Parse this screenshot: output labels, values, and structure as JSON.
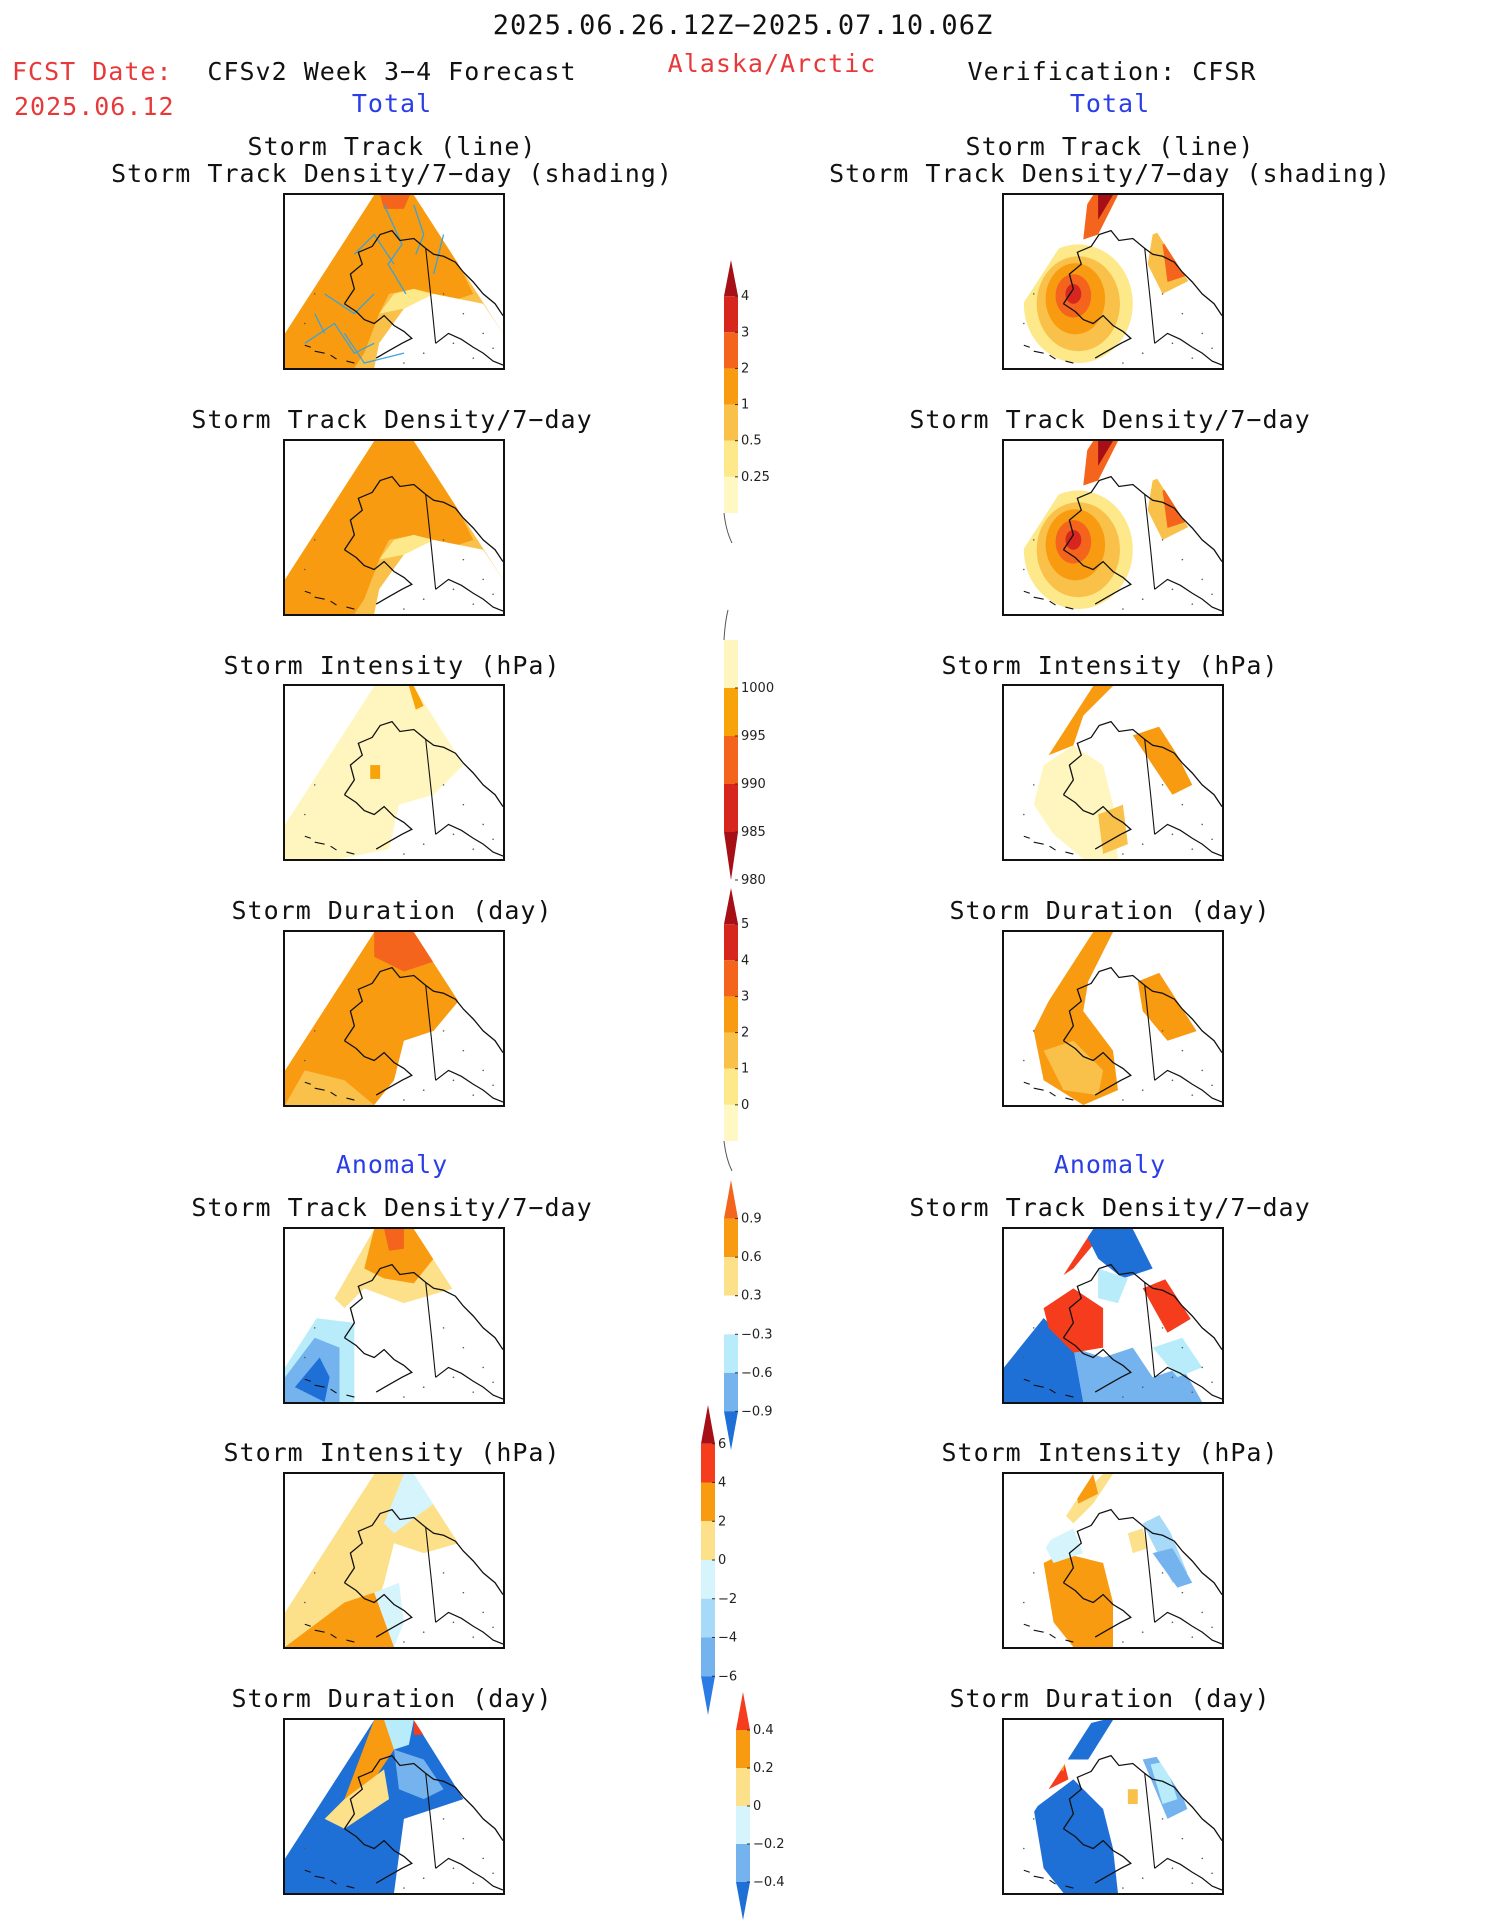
{
  "header": {
    "period": "2025.06.26.12Z−2025.07.10.06Z",
    "fcst_label": "FCST Date:",
    "fcst_date": "2025.06.12",
    "model_title": "CFSv2 Week 3−4 Forecast",
    "region": "Alaska/Arctic",
    "verification": "Verification: CFSR",
    "left_total": "Total",
    "right_total": "Total",
    "left_anomaly": "Anomaly",
    "right_anomaly": "Anomaly"
  },
  "panels": {
    "track_line": "Storm Track (line)",
    "track_shading": "Storm Track Density/7−day (shading)",
    "density": "Storm Track Density/7−day",
    "intensity": "Storm Intensity (hPa)",
    "duration": "Storm Duration (day)"
  },
  "colorbars": {
    "density_total": {
      "labels": [
        "4",
        "3",
        "2",
        "1",
        "0.5",
        "0.25"
      ],
      "colors": [
        "#a50f15",
        "#d7261e",
        "#f4641d",
        "#f89b11",
        "#f9c04a",
        "#fde98a",
        "#fff8c4"
      ]
    },
    "intensity_total": {
      "labels": [
        "1000",
        "995",
        "990",
        "985",
        "980"
      ],
      "colors": [
        "#fff6bf",
        "#f9a30a",
        "#f4641d",
        "#d7261e",
        "#a50f15"
      ]
    },
    "duration_total": {
      "labels": [
        "5",
        "4",
        "3",
        "2",
        "1",
        "0"
      ],
      "colors": [
        "#a50f15",
        "#d7261e",
        "#f4641d",
        "#f89b11",
        "#f9c04a",
        "#fde98a",
        "#fff8c4"
      ]
    },
    "density_anom": {
      "labels": [
        "0.9",
        "0.6",
        "0.3",
        "−0.3",
        "−0.6",
        "−0.9"
      ],
      "colors": [
        "#f4641d",
        "#f89b11",
        "#fde08a",
        "#ffffff",
        "#b9ecfb",
        "#74b3ee",
        "#1e6fd6"
      ]
    },
    "intensity_anom": {
      "labels": [
        "6",
        "4",
        "2",
        "0",
        "−2",
        "−4",
        "−6"
      ],
      "colors": [
        "#a50f15",
        "#f53d1d",
        "#f89b11",
        "#fde08a",
        "#d6f4fb",
        "#a7d9f8",
        "#74b3ee",
        "#2b7be6"
      ]
    },
    "duration_anom": {
      "labels": [
        "0.4",
        "0.2",
        "0",
        "−0.2",
        "−0.4"
      ],
      "colors": [
        "#f53d1d",
        "#f89b11",
        "#fde08a",
        "#d6f4fb",
        "#74b3ee",
        "#1e6fd6"
      ]
    }
  },
  "colors": {
    "red_text": "#e8393a",
    "blue_text": "#2a3ee8"
  }
}
